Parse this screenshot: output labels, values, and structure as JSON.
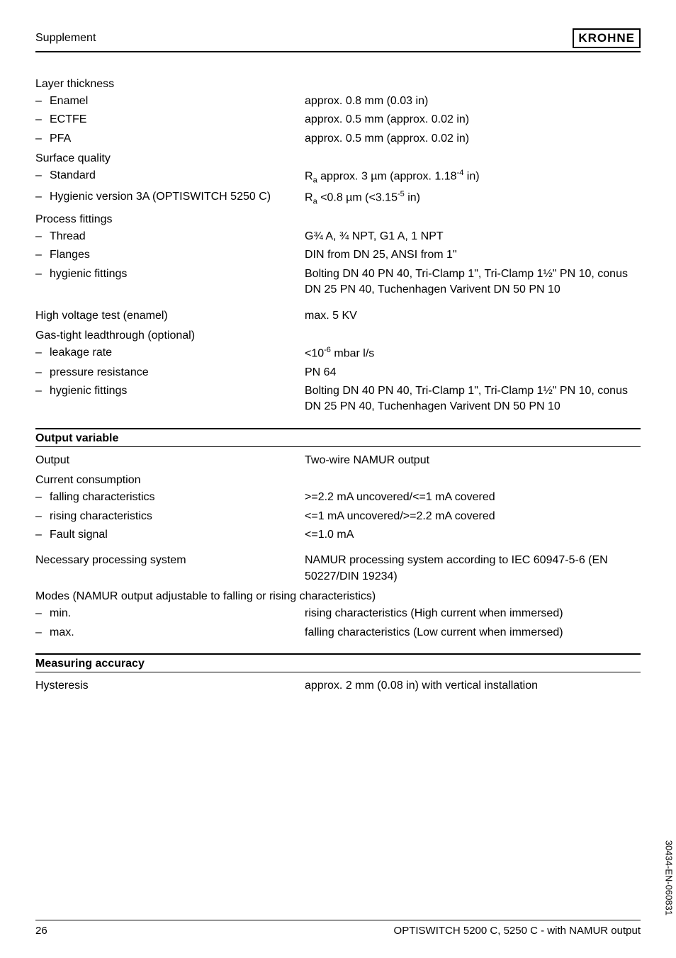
{
  "header": {
    "title": "Supplement",
    "brand": "KROHNE"
  },
  "layer_thickness": {
    "heading": "Layer thickness",
    "items": [
      {
        "label": "Enamel",
        "value": "approx. 0.8 mm (0.03 in)"
      },
      {
        "label": "ECTFE",
        "value": "approx. 0.5 mm (approx. 0.02 in)"
      },
      {
        "label": "PFA",
        "value": "approx. 0.5 mm (approx. 0.02 in)"
      }
    ]
  },
  "surface_quality": {
    "heading": "Surface quality",
    "items": [
      {
        "label": "Standard",
        "value_html": "R<sub>a</sub> approx. 3 µm (approx. 1.18<sup>-4</sup> in)"
      },
      {
        "label": "Hygienic version 3A (OPTISWITCH 5250 C)",
        "value_html": "R<sub>a</sub> <0.8 µm (<3.15<sup>-5</sup> in)"
      }
    ]
  },
  "process_fittings": {
    "heading": "Process fittings",
    "items": [
      {
        "label": "Thread",
        "value": "G¾ A, ¾ NPT, G1 A, 1 NPT"
      },
      {
        "label": "Flanges",
        "value": "DIN from DN 25, ANSI from 1\""
      },
      {
        "label": "hygienic fittings",
        "value": "Bolting DN 40 PN 40, Tri-Clamp 1\", Tri-Clamp 1½\" PN 10, conus DN 25 PN 40, Tuchenhagen Varivent DN 50 PN 10"
      }
    ]
  },
  "high_voltage": {
    "label": "High voltage test (enamel)",
    "value": "max. 5 KV"
  },
  "gas_tight": {
    "heading": "Gas-tight leadthrough (optional)",
    "items": [
      {
        "label": "leakage rate",
        "value_html": "<10<sup>-6</sup> mbar l/s"
      },
      {
        "label": "pressure resistance",
        "value": "PN 64"
      },
      {
        "label": "hygienic fittings",
        "value": "Bolting DN 40 PN 40, Tri-Clamp 1\", Tri-Clamp 1½\" PN 10, conus DN 25 PN 40, Tuchenhagen Varivent DN 50 PN 10"
      }
    ]
  },
  "output_variable": {
    "section_title": "Output variable",
    "output_label": "Output",
    "output_value": "Two-wire NAMUR output",
    "current_heading": "Current consumption",
    "current_items": [
      {
        "label": "falling characteristics",
        "value": ">=2.2 mA uncovered/<=1 mA covered"
      },
      {
        "label": "rising characteristics",
        "value": "<=1 mA uncovered/>=2.2 mA covered"
      },
      {
        "label": "Fault signal",
        "value": "<=1.0 mA"
      }
    ],
    "processing_label": "Necessary processing system",
    "processing_value": "NAMUR processing system according to IEC 60947-5-6 (EN 50227/DIN 19234)",
    "modes_heading": "Modes (NAMUR output adjustable to falling or rising characteristics)",
    "modes_items": [
      {
        "label": "min.",
        "value": "rising characteristics (High current when immersed)"
      },
      {
        "label": "max.",
        "value": "falling characteristics (Low current when immersed)"
      }
    ]
  },
  "measuring_accuracy": {
    "section_title": "Measuring accuracy",
    "hysteresis_label": "Hysteresis",
    "hysteresis_value": "approx. 2 mm (0.08 in) with vertical installation"
  },
  "footer": {
    "page_number": "26",
    "doc_title": "OPTISWITCH 5200 C, 5250 C - with NAMUR output"
  },
  "side_code": "30434-EN-060831"
}
